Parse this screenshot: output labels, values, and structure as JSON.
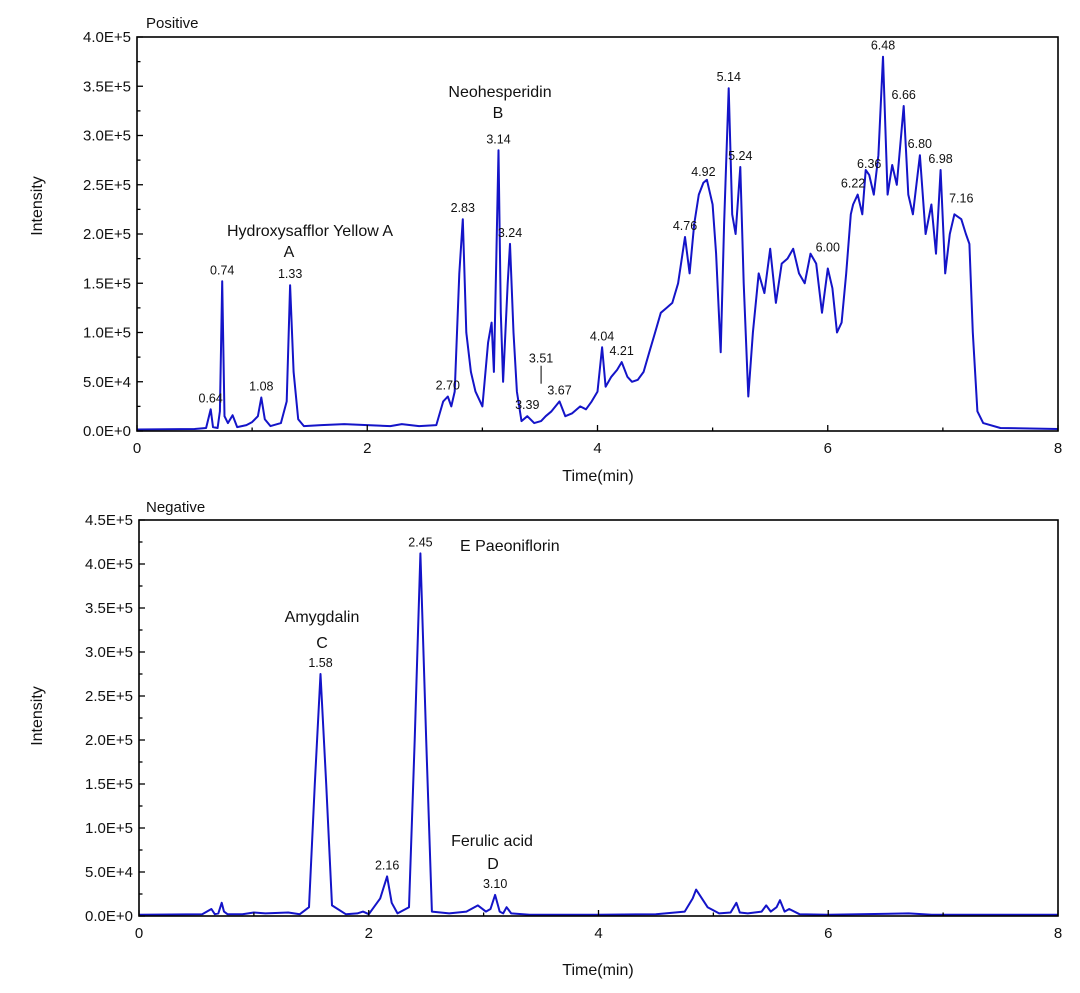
{
  "colors": {
    "trace": "#1414c8",
    "axis": "#000000",
    "background": "#ffffff"
  },
  "chart_data": [
    {
      "type": "line",
      "title": "Positive",
      "xlabel": "Time(min)",
      "ylabel": "Intensity",
      "xlim": [
        0,
        8
      ],
      "ylim": [
        0,
        400000
      ],
      "grid": false,
      "x_ticks": [
        0,
        2,
        4,
        6,
        8
      ],
      "x_tick_labels": [
        "0",
        "2",
        "4",
        "6",
        "8"
      ],
      "y_ticks": [
        0,
        50000,
        100000,
        150000,
        200000,
        250000,
        300000,
        350000,
        400000
      ],
      "y_tick_labels": [
        "0.0E+0",
        "5.0E+4",
        "1.0E+5",
        "1.5E+5",
        "2.0E+5",
        "2.5E+5",
        "3.0E+5",
        "3.5E+5",
        "4.0E+5"
      ],
      "series": [
        {
          "x": [
            0,
            0.5,
            0.6,
            0.64,
            0.66,
            0.7,
            0.72,
            0.74,
            0.76,
            0.79,
            0.83,
            0.87,
            0.95,
            1.0,
            1.05,
            1.08,
            1.11,
            1.16,
            1.25,
            1.3,
            1.33,
            1.36,
            1.4,
            1.45,
            1.6,
            1.8,
            2.0,
            2.2,
            2.3,
            2.45,
            2.6,
            2.66,
            2.7,
            2.73,
            2.76,
            2.8,
            2.83,
            2.86,
            2.9,
            2.94,
            3.0,
            3.05,
            3.08,
            3.1,
            3.12,
            3.14,
            3.16,
            3.18,
            3.22,
            3.24,
            3.27,
            3.3,
            3.34,
            3.39,
            3.45,
            3.51,
            3.55,
            3.6,
            3.67,
            3.72,
            3.78,
            3.85,
            3.9,
            3.95,
            4.0,
            4.04,
            4.07,
            4.12,
            4.17,
            4.21,
            4.26,
            4.3,
            4.35,
            4.4,
            4.45,
            4.5,
            4.55,
            4.6,
            4.65,
            4.7,
            4.76,
            4.8,
            4.84,
            4.88,
            4.92,
            4.95,
            5.0,
            5.03,
            5.07,
            5.1,
            5.14,
            5.17,
            5.2,
            5.24,
            5.27,
            5.31,
            5.35,
            5.4,
            5.45,
            5.5,
            5.55,
            5.6,
            5.65,
            5.7,
            5.75,
            5.8,
            5.85,
            5.9,
            5.95,
            6.0,
            6.04,
            6.08,
            6.12,
            6.16,
            6.2,
            6.22,
            6.26,
            6.3,
            6.33,
            6.36,
            6.4,
            6.44,
            6.48,
            6.52,
            6.56,
            6.6,
            6.66,
            6.7,
            6.74,
            6.8,
            6.85,
            6.9,
            6.94,
            6.98,
            7.02,
            7.06,
            7.1,
            7.16,
            7.2,
            7.23,
            7.26,
            7.3,
            7.35,
            7.5,
            8.0
          ],
          "y": [
            1500,
            2000,
            3000,
            22000,
            4000,
            3000,
            20000,
            152000,
            15000,
            8000,
            16000,
            4000,
            6000,
            9000,
            15000,
            34000,
            12000,
            5000,
            8000,
            30000,
            148000,
            60000,
            12000,
            5000,
            6000,
            7000,
            6000,
            5000,
            7000,
            5000,
            6000,
            30000,
            35000,
            25000,
            40000,
            160000,
            215000,
            100000,
            60000,
            40000,
            25000,
            90000,
            110000,
            60000,
            170000,
            285000,
            120000,
            50000,
            150000,
            190000,
            100000,
            40000,
            10000,
            15000,
            8000,
            10000,
            15000,
            20000,
            30000,
            15000,
            18000,
            25000,
            22000,
            30000,
            40000,
            85000,
            45000,
            55000,
            62000,
            70000,
            55000,
            50000,
            52000,
            60000,
            80000,
            100000,
            120000,
            125000,
            130000,
            150000,
            197000,
            160000,
            210000,
            240000,
            252000,
            255000,
            230000,
            180000,
            80000,
            210000,
            348000,
            220000,
            200000,
            268000,
            150000,
            35000,
            100000,
            160000,
            140000,
            185000,
            130000,
            170000,
            175000,
            185000,
            160000,
            150000,
            180000,
            170000,
            120000,
            165000,
            145000,
            100000,
            110000,
            160000,
            220000,
            230000,
            240000,
            220000,
            265000,
            260000,
            240000,
            280000,
            380000,
            240000,
            270000,
            250000,
            330000,
            240000,
            220000,
            280000,
            200000,
            230000,
            180000,
            265000,
            160000,
            200000,
            220000,
            215000,
            200000,
            190000,
            100000,
            20000,
            8000,
            3000,
            2000
          ]
        }
      ],
      "peak_labels": [
        {
          "x": 0.64,
          "y": 22000,
          "text": "0.64"
        },
        {
          "x": 0.74,
          "y": 152000,
          "text": "0.74"
        },
        {
          "x": 1.08,
          "y": 34000,
          "text": "1.08"
        },
        {
          "x": 1.33,
          "y": 148000,
          "text": "1.33"
        },
        {
          "x": 2.7,
          "y": 35000,
          "text": "2.70"
        },
        {
          "x": 2.83,
          "y": 215000,
          "text": "2.83"
        },
        {
          "x": 3.14,
          "y": 285000,
          "text": "3.14"
        },
        {
          "x": 3.24,
          "y": 190000,
          "text": "3.24"
        },
        {
          "x": 3.39,
          "y": 15000,
          "text": "3.39"
        },
        {
          "x": 3.51,
          "y": 48000,
          "text": "3.51"
        },
        {
          "x": 3.67,
          "y": 30000,
          "text": "3.67"
        },
        {
          "x": 4.04,
          "y": 85000,
          "text": "4.04"
        },
        {
          "x": 4.21,
          "y": 70000,
          "text": "4.21"
        },
        {
          "x": 4.76,
          "y": 197000,
          "text": "4.76"
        },
        {
          "x": 4.92,
          "y": 252000,
          "text": "4.92"
        },
        {
          "x": 5.14,
          "y": 348000,
          "text": "5.14"
        },
        {
          "x": 5.24,
          "y": 268000,
          "text": "5.24"
        },
        {
          "x": 6.0,
          "y": 175000,
          "text": "6.00"
        },
        {
          "x": 6.22,
          "y": 240000,
          "text": "6.22"
        },
        {
          "x": 6.36,
          "y": 260000,
          "text": "6.36"
        },
        {
          "x": 6.48,
          "y": 380000,
          "text": "6.48"
        },
        {
          "x": 6.66,
          "y": 330000,
          "text": "6.66"
        },
        {
          "x": 6.8,
          "y": 280000,
          "text": "6.80"
        },
        {
          "x": 6.98,
          "y": 265000,
          "text": "6.98"
        },
        {
          "x": 7.16,
          "y": 225000,
          "text": "7.16"
        }
      ],
      "compounds": [
        {
          "name": "Hydroxysafflor Yellow A",
          "letter": "A",
          "x": 1.33
        },
        {
          "name": "Neohesperidin",
          "letter": "B",
          "x": 3.14
        }
      ]
    },
    {
      "type": "line",
      "title": "Negative",
      "xlabel": "Time(min)",
      "ylabel": "Intensity",
      "xlim": [
        0,
        8
      ],
      "ylim": [
        0,
        450000
      ],
      "grid": false,
      "x_ticks": [
        0,
        2,
        4,
        6,
        8
      ],
      "x_tick_labels": [
        "0",
        "2",
        "4",
        "6",
        "8"
      ],
      "y_ticks": [
        0,
        50000,
        100000,
        150000,
        200000,
        250000,
        300000,
        350000,
        400000,
        450000
      ],
      "y_tick_labels": [
        "0.0E+0",
        "5.0E+4",
        "1.0E+5",
        "1.5E+5",
        "2.0E+5",
        "2.5E+5",
        "3.0E+5",
        "3.5E+5",
        "4.0E+5",
        "4.5E+5"
      ],
      "series": [
        {
          "x": [
            0,
            0.55,
            0.63,
            0.66,
            0.69,
            0.72,
            0.74,
            0.77,
            0.9,
            1.0,
            1.1,
            1.3,
            1.4,
            1.48,
            1.53,
            1.58,
            1.63,
            1.68,
            1.8,
            1.9,
            1.95,
            2.0,
            2.1,
            2.16,
            2.2,
            2.25,
            2.35,
            2.4,
            2.45,
            2.5,
            2.55,
            2.7,
            2.85,
            2.95,
            3.02,
            3.06,
            3.1,
            3.14,
            3.17,
            3.2,
            3.24,
            3.4,
            4.0,
            4.5,
            4.75,
            4.82,
            4.85,
            4.9,
            4.95,
            5.05,
            5.15,
            5.2,
            5.23,
            5.3,
            5.42,
            5.46,
            5.5,
            5.55,
            5.58,
            5.62,
            5.66,
            5.75,
            6.0,
            6.7,
            6.9,
            7.5,
            8.0
          ],
          "y": [
            1500,
            2000,
            8000,
            2000,
            3000,
            15000,
            5000,
            2000,
            2000,
            4000,
            3000,
            4000,
            2000,
            10000,
            150000,
            275000,
            150000,
            12000,
            2000,
            3000,
            5000,
            2000,
            20000,
            45000,
            15000,
            3000,
            10000,
            200000,
            412000,
            200000,
            5000,
            3000,
            5000,
            12000,
            5000,
            8000,
            24000,
            5000,
            3000,
            10000,
            3000,
            1500,
            1500,
            2000,
            5000,
            20000,
            30000,
            20000,
            10000,
            3000,
            4000,
            15000,
            4000,
            3000,
            5000,
            12000,
            5000,
            10000,
            18000,
            5000,
            8000,
            2000,
            1500,
            3000,
            1500,
            1500,
            1500
          ]
        }
      ],
      "peak_labels": [
        {
          "x": 1.58,
          "y": 275000,
          "text": "1.58"
        },
        {
          "x": 2.16,
          "y": 45000,
          "text": "2.16"
        },
        {
          "x": 2.45,
          "y": 412000,
          "text": "2.45"
        },
        {
          "x": 3.1,
          "y": 24000,
          "text": "3.10"
        }
      ],
      "compounds": [
        {
          "name": "Amygdalin",
          "letter": "C",
          "x": 1.58
        },
        {
          "name": "Ferulic acid",
          "letter": "D",
          "x": 3.1
        },
        {
          "name": "E Paeoniflorin",
          "letter": "",
          "x": 2.45
        }
      ]
    }
  ]
}
